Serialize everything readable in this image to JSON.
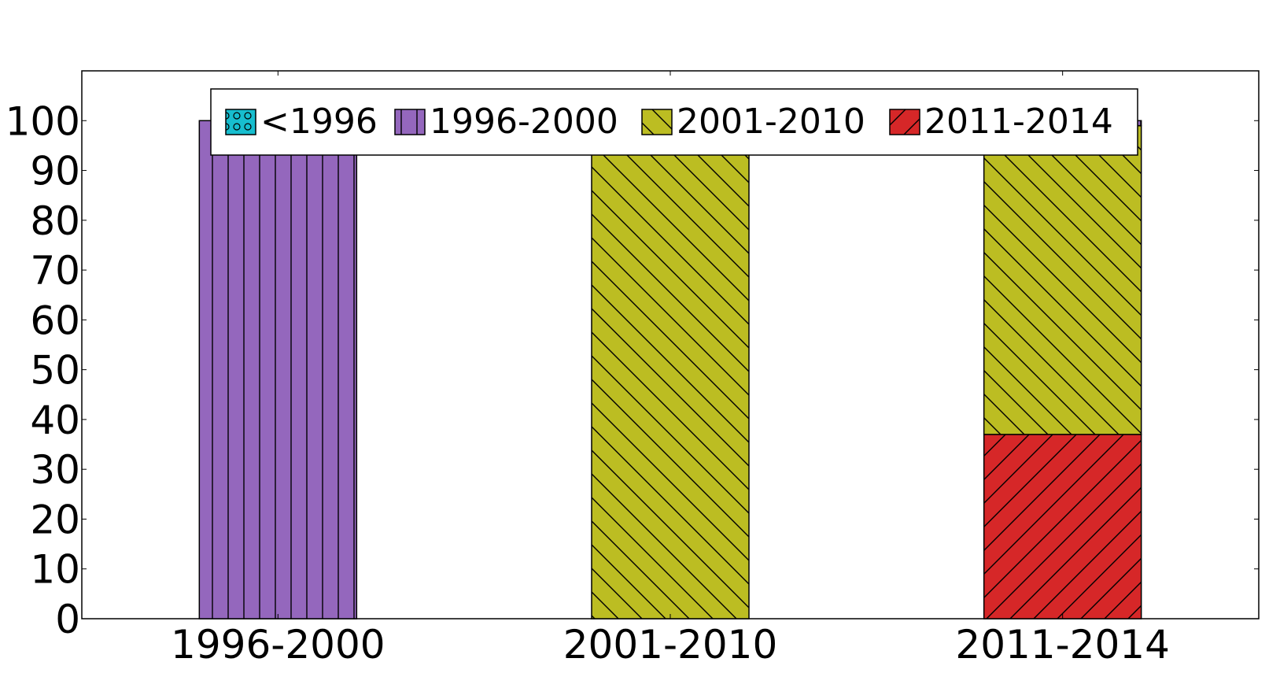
{
  "chart_data": {
    "type": "bar",
    "stacked": true,
    "categories": [
      "1996-2000",
      "2001-2010",
      "2011-2014"
    ],
    "series": [
      {
        "name": "<1996",
        "values": [
          0,
          0,
          0
        ],
        "color": "#17becf",
        "hatch": "circles"
      },
      {
        "name": "2011-2014",
        "values": [
          0,
          0,
          37
        ],
        "color": "#d62728",
        "hatch": "forward-diagonal"
      },
      {
        "name": "2001-2010",
        "values": [
          0,
          95,
          62
        ],
        "color": "#bcbd22",
        "hatch": "back-diagonal"
      },
      {
        "name": "1996-2000",
        "values": [
          100,
          5,
          1
        ],
        "color": "#9467bd",
        "hatch": "vertical"
      }
    ],
    "legend_order": [
      "<1996",
      "1996-2000",
      "2001-2010",
      "2011-2014"
    ],
    "yticks": [
      0,
      10,
      20,
      30,
      40,
      50,
      60,
      70,
      80,
      90,
      100
    ],
    "ylim": [
      0,
      110
    ],
    "legend_position": "top-center",
    "grid": false
  }
}
